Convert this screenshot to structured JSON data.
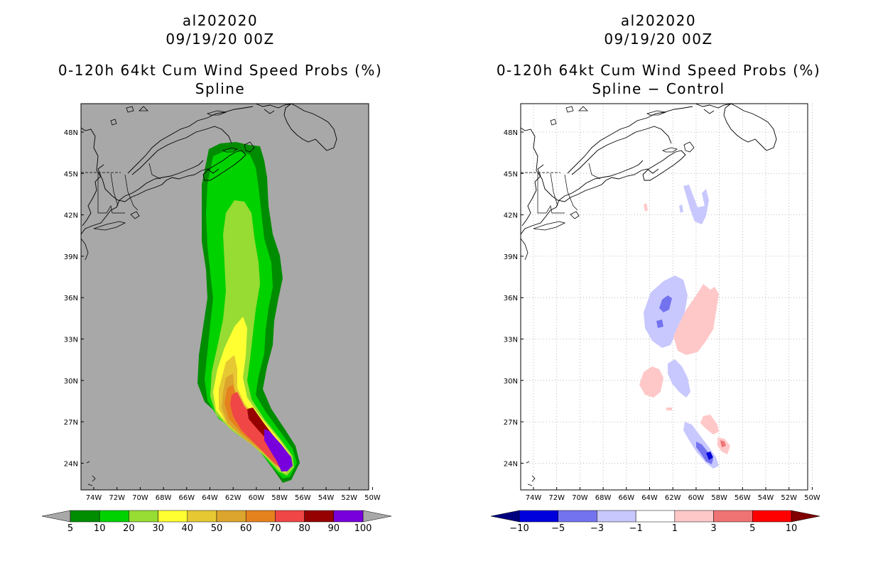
{
  "left_panel": {
    "storm_id": "al202020",
    "datetime": "09/19/20 00Z",
    "product": "0-120h 64kt Cum Wind Speed Probs (%)",
    "subtitle": "Spline",
    "colors": [
      "#008c00",
      "#00d200",
      "#96dc32",
      "#ffff32",
      "#e6c832",
      "#dca52d",
      "#e6821e",
      "#f04646",
      "#960000",
      "#7800dc"
    ],
    "colorbar_labels": [
      "5",
      "10",
      "20",
      "30",
      "40",
      "50",
      "60",
      "70",
      "80",
      "90",
      "100"
    ]
  },
  "right_panel": {
    "storm_id": "al202020",
    "datetime": "09/19/20 00Z",
    "product": "0-120h 64kt Cum Wind Speed Probs (%)",
    "subtitle": "Spline − Control",
    "colors": [
      "#0000dc",
      "#7373f0",
      "#c8c8ff",
      "#ffffff",
      "#ffc8c8",
      "#f07373",
      "#ff0000"
    ],
    "colorbar_labels": [
      "−10",
      "−5",
      "−3",
      "−1",
      "1",
      "3",
      "5",
      "10"
    ]
  },
  "axes": {
    "lon_labels": [
      "74W",
      "72W",
      "70W",
      "68W",
      "66W",
      "64W",
      "62W",
      "60W",
      "58W",
      "56W",
      "54W",
      "52W",
      "50W"
    ],
    "lat_labels": [
      "48N",
      "45N",
      "42N",
      "39N",
      "36N",
      "33N",
      "30N",
      "27N",
      "24N"
    ]
  }
}
